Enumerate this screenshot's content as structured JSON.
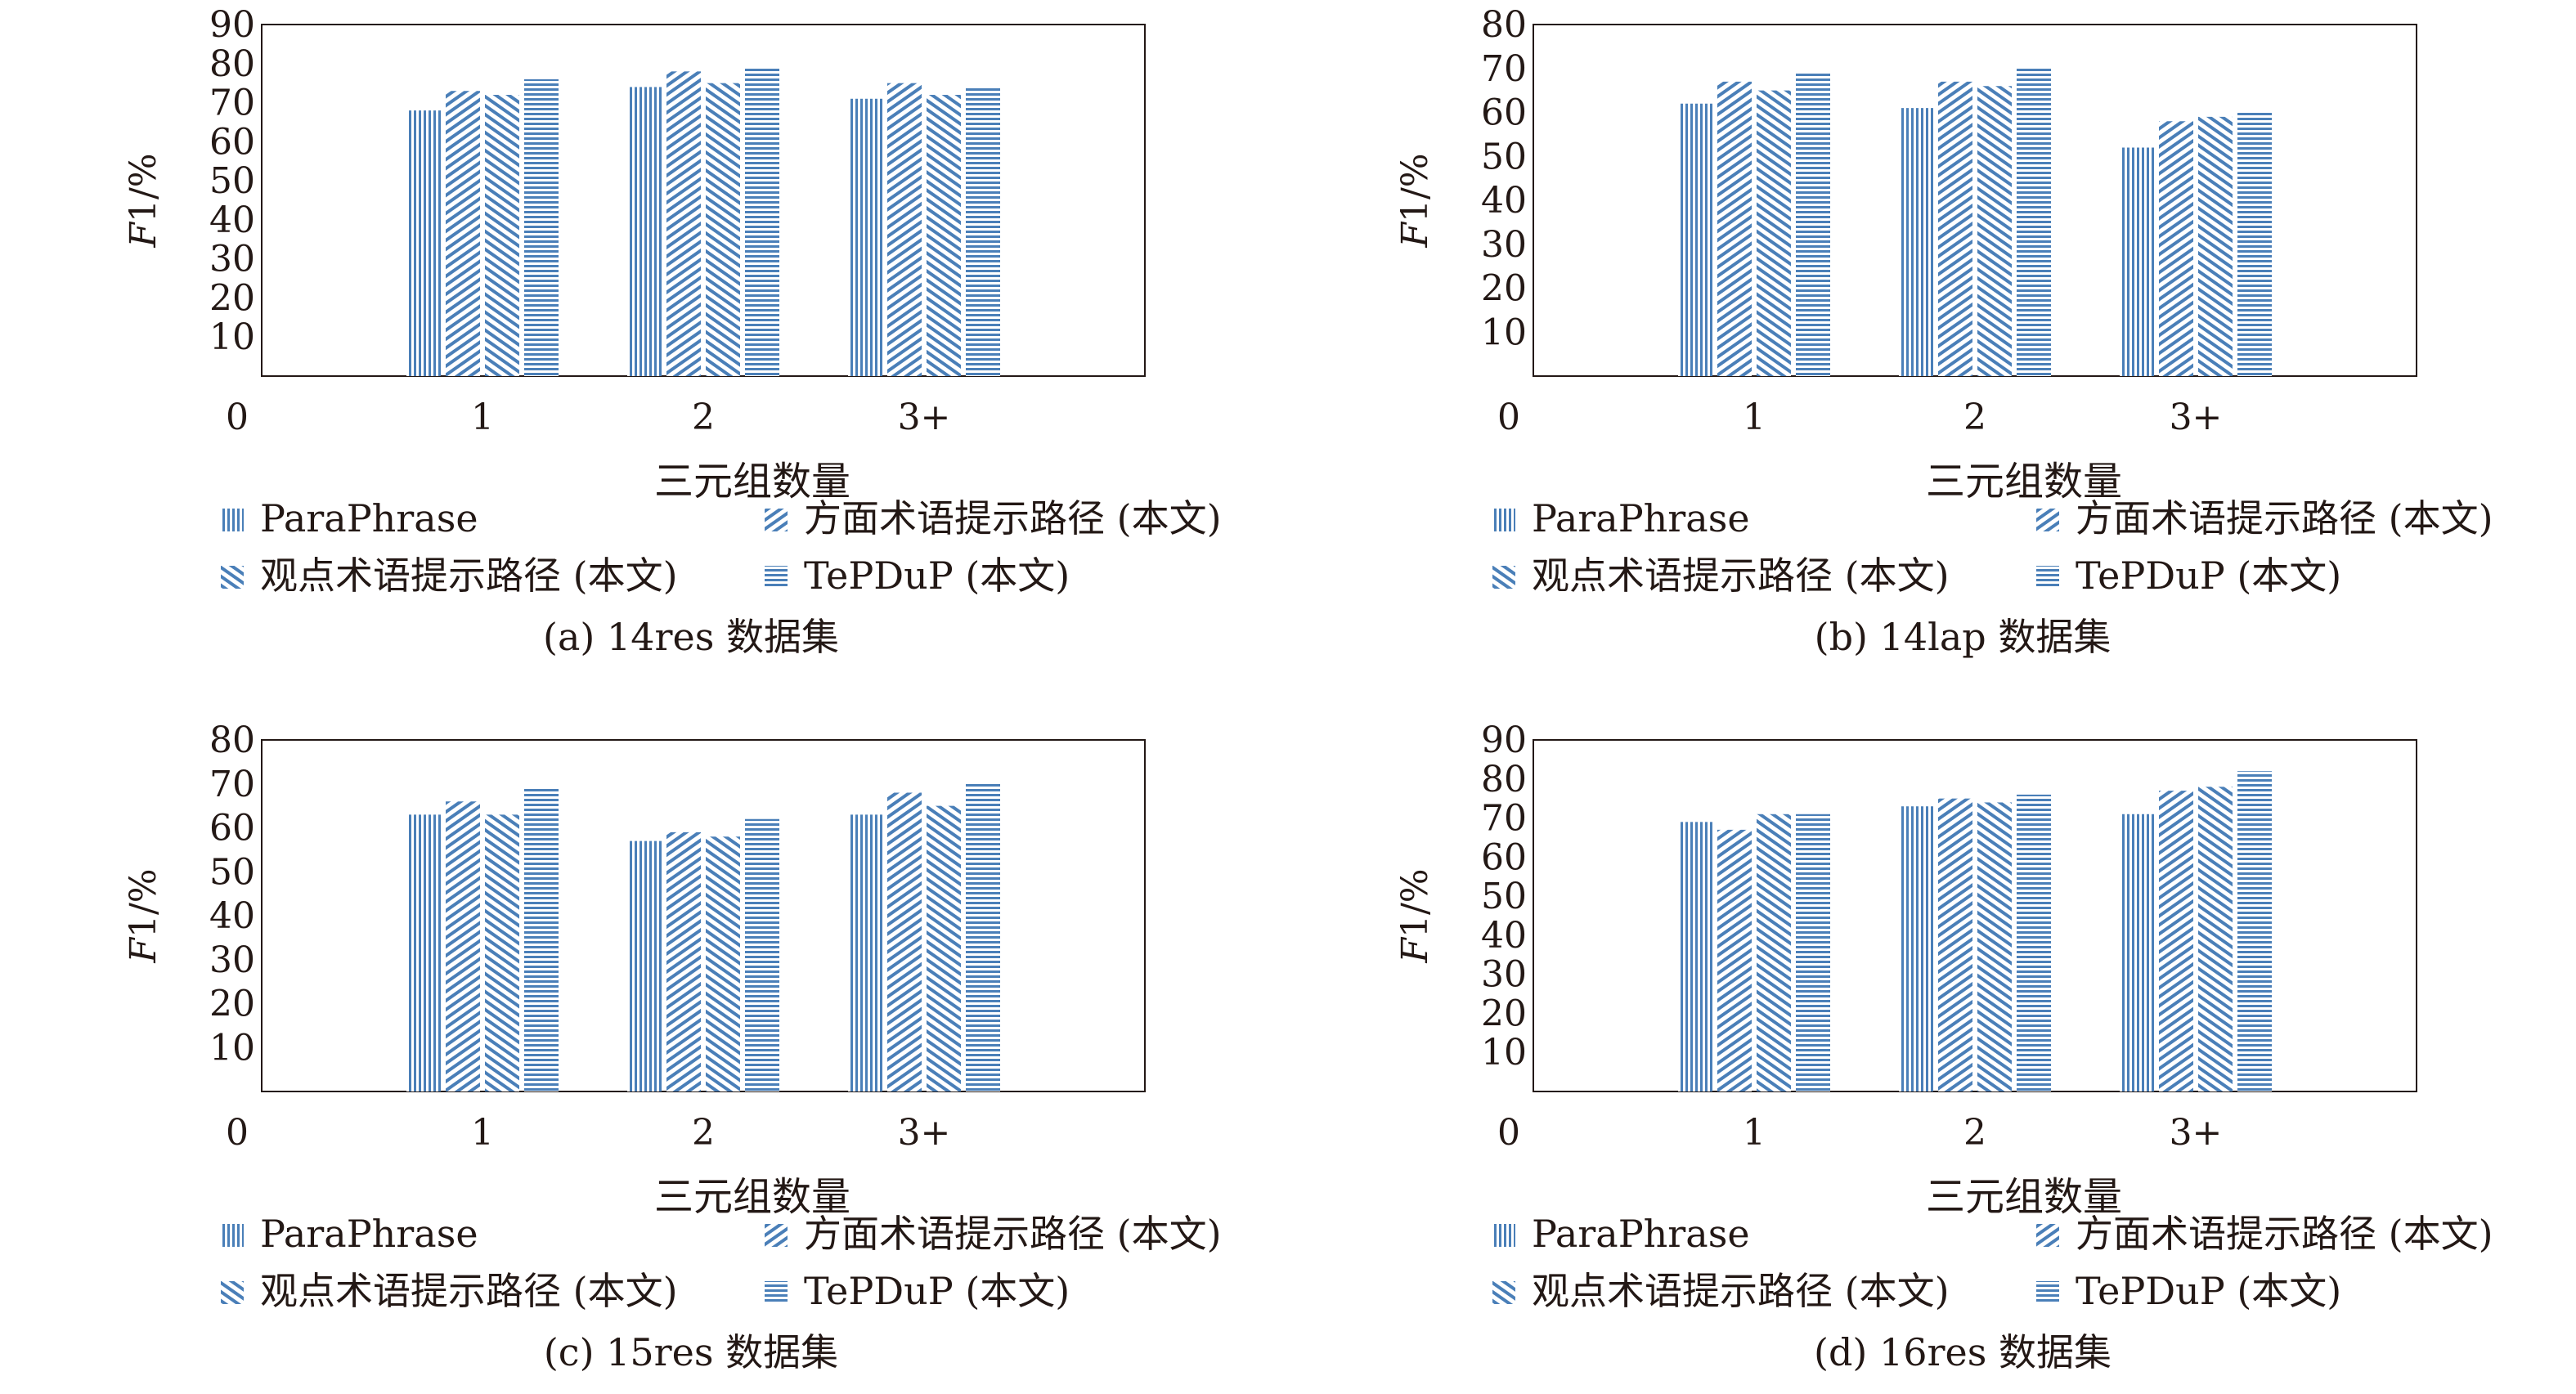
{
  "legend_labels": [
    "ParaPhrase",
    "方面术语提示路径 (本文)",
    "观点术语提示路径 (本文)",
    "TePDuP (本文)"
  ],
  "colors": {
    "bar": "#4a7fb8",
    "axis": "#231815"
  },
  "pattern_names": [
    "vertical-lines",
    "diagonal-down-lines",
    "diagonal-up-lines",
    "horizontal-lines"
  ],
  "chart_data": [
    {
      "type": "bar",
      "caption": "(a)  14res 数据集",
      "xlabel": "三元组数量",
      "ylabel": "F1/%",
      "categories": [
        "1",
        "2",
        "3+"
      ],
      "x_ticks": [
        "0",
        "1",
        "2",
        "3+"
      ],
      "ylim": [
        0,
        90
      ],
      "yticks": [
        10,
        20,
        30,
        40,
        50,
        60,
        70,
        80,
        90
      ],
      "grid": false,
      "legend_position": "bottom",
      "series": [
        {
          "name": "ParaPhrase",
          "values": [
            68,
            74,
            71
          ]
        },
        {
          "name": "方面术语提示路径 (本文)",
          "values": [
            73,
            78,
            75
          ]
        },
        {
          "name": "观点术语提示路径 (本文)",
          "values": [
            72,
            75,
            72
          ]
        },
        {
          "name": "TePDuP (本文)",
          "values": [
            76,
            79,
            74
          ]
        }
      ]
    },
    {
      "type": "bar",
      "caption": "(b)  14lap 数据集",
      "xlabel": "三元组数量",
      "ylabel": "F1/%",
      "categories": [
        "1",
        "2",
        "3+"
      ],
      "x_ticks": [
        "0",
        "1",
        "2",
        "3+"
      ],
      "ylim": [
        0,
        80
      ],
      "yticks": [
        10,
        20,
        30,
        40,
        50,
        60,
        70,
        80
      ],
      "grid": false,
      "legend_position": "bottom",
      "series": [
        {
          "name": "ParaPhrase",
          "values": [
            62,
            61,
            52
          ]
        },
        {
          "name": "方面术语提示路径 (本文)",
          "values": [
            67,
            67,
            58
          ]
        },
        {
          "name": "观点术语提示路径 (本文)",
          "values": [
            65,
            66,
            59
          ]
        },
        {
          "name": "TePDuP (本文)",
          "values": [
            69,
            70,
            60
          ]
        }
      ]
    },
    {
      "type": "bar",
      "caption": "(c)  15res 数据集",
      "xlabel": "三元组数量",
      "ylabel": "F1/%",
      "categories": [
        "1",
        "2",
        "3+"
      ],
      "x_ticks": [
        "0",
        "1",
        "2",
        "3+"
      ],
      "ylim": [
        0,
        80
      ],
      "yticks": [
        10,
        20,
        30,
        40,
        50,
        60,
        70,
        80
      ],
      "grid": false,
      "legend_position": "bottom",
      "series": [
        {
          "name": "ParaPhrase",
          "values": [
            63,
            57,
            63
          ]
        },
        {
          "name": "方面术语提示路径 (本文)",
          "values": [
            66,
            59,
            68
          ]
        },
        {
          "name": "观点术语提示路径 (本文)",
          "values": [
            63,
            58,
            65
          ]
        },
        {
          "name": "TePDuP (本文)",
          "values": [
            69,
            62,
            70
          ]
        }
      ]
    },
    {
      "type": "bar",
      "caption": "(d)  16res 数据集",
      "xlabel": "三元组数量",
      "ylabel": "F1/%",
      "categories": [
        "1",
        "2",
        "3+"
      ],
      "x_ticks": [
        "0",
        "1",
        "2",
        "3+"
      ],
      "ylim": [
        0,
        90
      ],
      "yticks": [
        10,
        20,
        30,
        40,
        50,
        60,
        70,
        80,
        90
      ],
      "grid": false,
      "legend_position": "bottom",
      "series": [
        {
          "name": "ParaPhrase",
          "values": [
            69,
            73,
            71
          ]
        },
        {
          "name": "方面术语提示路径 (本文)",
          "values": [
            67,
            75,
            77
          ]
        },
        {
          "name": "观点术语提示路径 (本文)",
          "values": [
            71,
            74,
            78
          ]
        },
        {
          "name": "TePDuP (本文)",
          "values": [
            71,
            76,
            82
          ]
        }
      ]
    }
  ]
}
